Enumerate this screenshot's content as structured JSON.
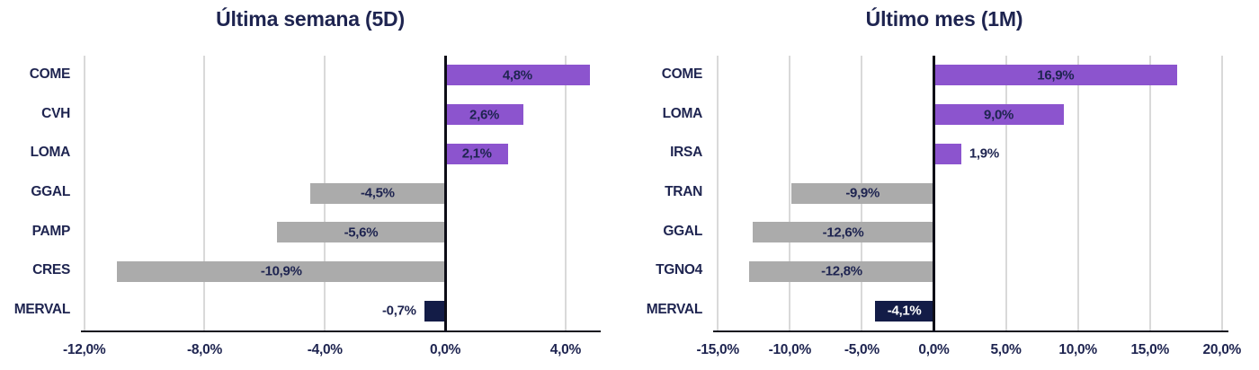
{
  "colors": {
    "positive": "#8C54CE",
    "negative": "#ABABAB",
    "index": "#131C47",
    "text": "#1E2450",
    "label_on_index": "#FFFFFF",
    "grid": "#D9D9D9",
    "zero_line": "#0D0D17",
    "axis_line": "#10101E",
    "background": "#FFFFFF"
  },
  "chart_data": [
    {
      "type": "bar",
      "orientation": "horizontal",
      "title": "Última semana (5D)",
      "xlim": [
        -12.05,
        5.05
      ],
      "grid": true,
      "categories": [
        "COME",
        "CVH",
        "LOMA",
        "GGAL",
        "PAMP",
        "CRES",
        "MERVAL"
      ],
      "values": [
        4.8,
        2.6,
        2.1,
        -4.5,
        -5.6,
        -10.9,
        -0.7
      ],
      "ticks": [
        {
          "value": -12,
          "label": "-12,0%"
        },
        {
          "value": -8,
          "label": "-8,0%"
        },
        {
          "value": -4,
          "label": "-4,0%"
        },
        {
          "value": 0,
          "label": "0,0%"
        },
        {
          "value": 4,
          "label": "4,0%"
        }
      ],
      "bars": [
        {
          "name": "COME",
          "value": 4.8,
          "display": "4,8%",
          "kind": "positive"
        },
        {
          "name": "CVH",
          "value": 2.6,
          "display": "2,6%",
          "kind": "positive"
        },
        {
          "name": "LOMA",
          "value": 2.1,
          "display": "2,1%",
          "kind": "positive"
        },
        {
          "name": "GGAL",
          "value": -4.5,
          "display": "-4,5%",
          "kind": "negative"
        },
        {
          "name": "PAMP",
          "value": -5.6,
          "display": "-5,6%",
          "kind": "negative"
        },
        {
          "name": "CRES",
          "value": -10.9,
          "display": "-10,9%",
          "kind": "negative"
        },
        {
          "name": "MERVAL",
          "value": -0.7,
          "display": "-0,7%",
          "kind": "index"
        }
      ]
    },
    {
      "type": "bar",
      "orientation": "horizontal",
      "title": "Último mes (1M)",
      "xlim": [
        -15.2,
        20.2
      ],
      "grid": true,
      "categories": [
        "COME",
        "LOMA",
        "IRSA",
        "TRAN",
        "GGAL",
        "TGNO4",
        "MERVAL"
      ],
      "values": [
        16.9,
        9.0,
        1.9,
        -9.9,
        -12.6,
        -12.8,
        -4.1
      ],
      "ticks": [
        {
          "value": -15,
          "label": "-15,0%"
        },
        {
          "value": -10,
          "label": "-10,0%"
        },
        {
          "value": -5,
          "label": "-5,0%"
        },
        {
          "value": 0,
          "label": "0,0%"
        },
        {
          "value": 5,
          "label": "5,0%"
        },
        {
          "value": 10,
          "label": "10,0%"
        },
        {
          "value": 15,
          "label": "15,0%"
        },
        {
          "value": 20,
          "label": "20,0%"
        }
      ],
      "bars": [
        {
          "name": "COME",
          "value": 16.9,
          "display": "16,9%",
          "kind": "positive"
        },
        {
          "name": "LOMA",
          "value": 9.0,
          "display": "9,0%",
          "kind": "positive"
        },
        {
          "name": "IRSA",
          "value": 1.9,
          "display": "1,9%",
          "kind": "positive"
        },
        {
          "name": "TRAN",
          "value": -9.9,
          "display": "-9,9%",
          "kind": "negative"
        },
        {
          "name": "GGAL",
          "value": -12.6,
          "display": "-12,6%",
          "kind": "negative"
        },
        {
          "name": "TGNO4",
          "value": -12.8,
          "display": "-12,8%",
          "kind": "negative"
        },
        {
          "name": "MERVAL",
          "value": -4.1,
          "display": "-4,1%",
          "kind": "index"
        }
      ]
    }
  ]
}
